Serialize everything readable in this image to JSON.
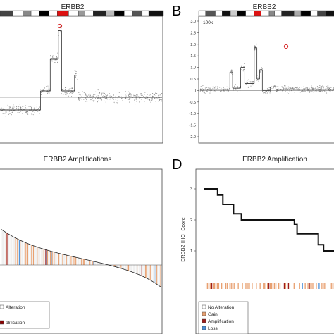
{
  "figure": {
    "panel_letters": [
      "B",
      "D"
    ],
    "panelA": {
      "title": "ERBB2"
    },
    "panelB": {
      "title": "ERBB2",
      "window_label": "100k"
    },
    "panelC": {
      "title": "ERBB2 Amplifications"
    },
    "panelD": {
      "title": "ERBB2 Amplification",
      "ylabel": "ERBB2 IHC−Score"
    }
  },
  "legend_left": {
    "items": [
      {
        "label": "Alteration",
        "color": "#ffffff"
      },
      {
        "label": "plification",
        "color": "#8b0000"
      }
    ]
  },
  "legend_right": {
    "items": [
      {
        "label": "No Alteration",
        "color": "#ffffff"
      },
      {
        "label": "Gain",
        "color": "#e8a070"
      },
      {
        "label": "Amplification",
        "color": "#9b1b1b"
      },
      {
        "label": "Loss",
        "color": "#4a90d9"
      }
    ]
  },
  "colors": {
    "gain": "#e8a070",
    "amplification": "#9b1b1b",
    "loss": "#4a90d9",
    "highlight": "#d62728",
    "point": "#777777"
  },
  "chart_data": [
    {
      "panel": "B",
      "type": "scatter",
      "title": "ERBB2",
      "annotation": "100k",
      "ylim": [
        -2,
        3
      ],
      "yticks": [
        "3.0",
        "2.5",
        "2.0",
        "1.5",
        "1.0",
        "0.5",
        "0",
        "-0.5",
        "-1.0",
        "-1.5",
        "-2.0"
      ],
      "segments": [
        {
          "x": [
            0.0,
            0.22
          ],
          "y": 0.05
        },
        {
          "x": [
            0.22,
            0.24
          ],
          "y": 0.8
        },
        {
          "x": [
            0.24,
            0.3
          ],
          "y": 0.1
        },
        {
          "x": [
            0.3,
            0.33
          ],
          "y": 1.0
        },
        {
          "x": [
            0.33,
            0.4
          ],
          "y": 0.3
        },
        {
          "x": [
            0.4,
            0.42
          ],
          "y": 1.85
        },
        {
          "x": [
            0.42,
            0.44
          ],
          "y": 0.5
        },
        {
          "x": [
            0.44,
            0.46
          ],
          "y": 0.9
        },
        {
          "x": [
            0.46,
            0.52
          ],
          "y": 0.0
        },
        {
          "x": [
            0.52,
            0.56
          ],
          "y": 0.15
        },
        {
          "x": [
            0.56,
            1.0
          ],
          "y": 0.05
        }
      ],
      "highlight_point": {
        "x": 0.43,
        "y": 1.95
      }
    },
    {
      "panel": "D",
      "type": "line",
      "title": "ERBB2 Amplification",
      "ylabel": "ERBB2 IHC−Score",
      "yticks": [
        "3",
        "2",
        "1"
      ],
      "ylim": [
        0.5,
        3.2
      ],
      "steps": [
        {
          "x": 0.0,
          "y": 3.0
        },
        {
          "x": 0.12,
          "y": 2.5
        },
        {
          "x": 0.22,
          "y": 2.0
        },
        {
          "x": 0.72,
          "y": 1.5
        },
        {
          "x": 0.9,
          "y": 1.0
        },
        {
          "x": 1.0,
          "y": 1.0
        }
      ]
    }
  ]
}
